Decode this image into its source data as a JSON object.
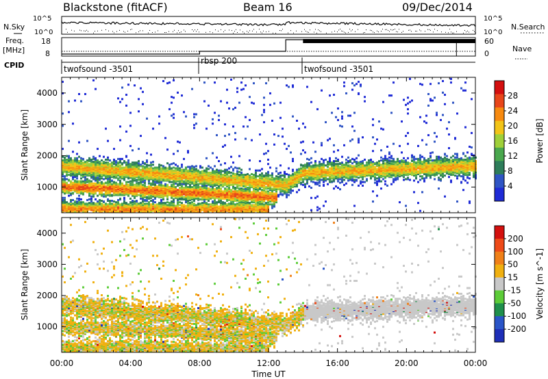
{
  "header": {
    "station": "Blackstone (fitACF)",
    "beam": "Beam 16",
    "date": "09/Dec/2014"
  },
  "top_panels": {
    "nsky_label": "N.Sky",
    "nsky_ticks": [
      "10^5",
      "10^0"
    ],
    "nsearch_label": "N.Search",
    "nsearch_ticks": [
      "10^5",
      "10^0"
    ],
    "freq_label": "Freq.",
    "freq_unit": "[MHz]",
    "freq_ticks": [
      "18",
      "8"
    ],
    "nave_label": "Nave",
    "nave_ticks": [
      "60",
      "0"
    ],
    "cpid_label": "CPID",
    "cpid_segments": [
      {
        "name": "twofsound -3501",
        "start_h": 0,
        "end_h": 8
      },
      {
        "name": "rbsp 200",
        "start_h": 8,
        "end_h": 14
      },
      {
        "name": "twofsound -3501",
        "start_h": 14,
        "end_h": 24
      }
    ]
  },
  "chart_data": [
    {
      "type": "heatmap",
      "name": "power",
      "xlabel": "Time UT",
      "ylabel": "Slant Range [km]",
      "x_ticks": [
        "00:00",
        "04:00",
        "08:00",
        "12:00",
        "16:00",
        "20:00",
        "00:00"
      ],
      "xlim_hours": [
        0,
        24
      ],
      "y_ticks": [
        1000,
        2000,
        3000,
        4000
      ],
      "ylim": [
        180,
        4500
      ],
      "colorbar": {
        "label": "Power [dB]",
        "ticks": [
          4,
          8,
          12,
          16,
          20,
          24,
          28
        ],
        "range": [
          0,
          32
        ],
        "colors": [
          "#1f2bd6",
          "#2f55c4",
          "#2e7d5a",
          "#4aa84e",
          "#9fd03a",
          "#f2c418",
          "#f78a10",
          "#e8461a",
          "#d40f0f"
        ]
      },
      "bands": [
        {
          "t": [
            0,
            8,
            13,
            14,
            24
          ],
          "r": [
            1700,
            1350,
            1100,
            1500,
            1700
          ],
          "strength": 22
        },
        {
          "t": [
            0,
            4,
            8,
            12.5
          ],
          "r": [
            1050,
            950,
            850,
            700
          ],
          "strength": 26
        },
        {
          "t": [
            0,
            3,
            6,
            12
          ],
          "r": [
            350,
            330,
            320,
            330
          ],
          "strength": 24
        }
      ]
    },
    {
      "type": "heatmap",
      "name": "velocity",
      "xlabel": "Time UT",
      "ylabel": "Slant Range [km]",
      "x_ticks": [
        "00:00",
        "04:00",
        "08:00",
        "12:00",
        "16:00",
        "20:00",
        "00:00"
      ],
      "xlim_hours": [
        0,
        24
      ],
      "y_ticks": [
        1000,
        2000,
        3000,
        4000
      ],
      "ylim": [
        180,
        4500
      ],
      "colorbar": {
        "label": "Velocity [m s^-1]",
        "ticks": [
          200,
          100,
          50,
          15,
          -15,
          -50,
          -100,
          -200
        ],
        "colors": [
          "#1e2fb8",
          "#2a55c8",
          "#1f8f4c",
          "#5ccc38",
          "#c8c8c8",
          "#f0b010",
          "#f08018",
          "#ee4a18",
          "#d4100e"
        ]
      }
    }
  ]
}
